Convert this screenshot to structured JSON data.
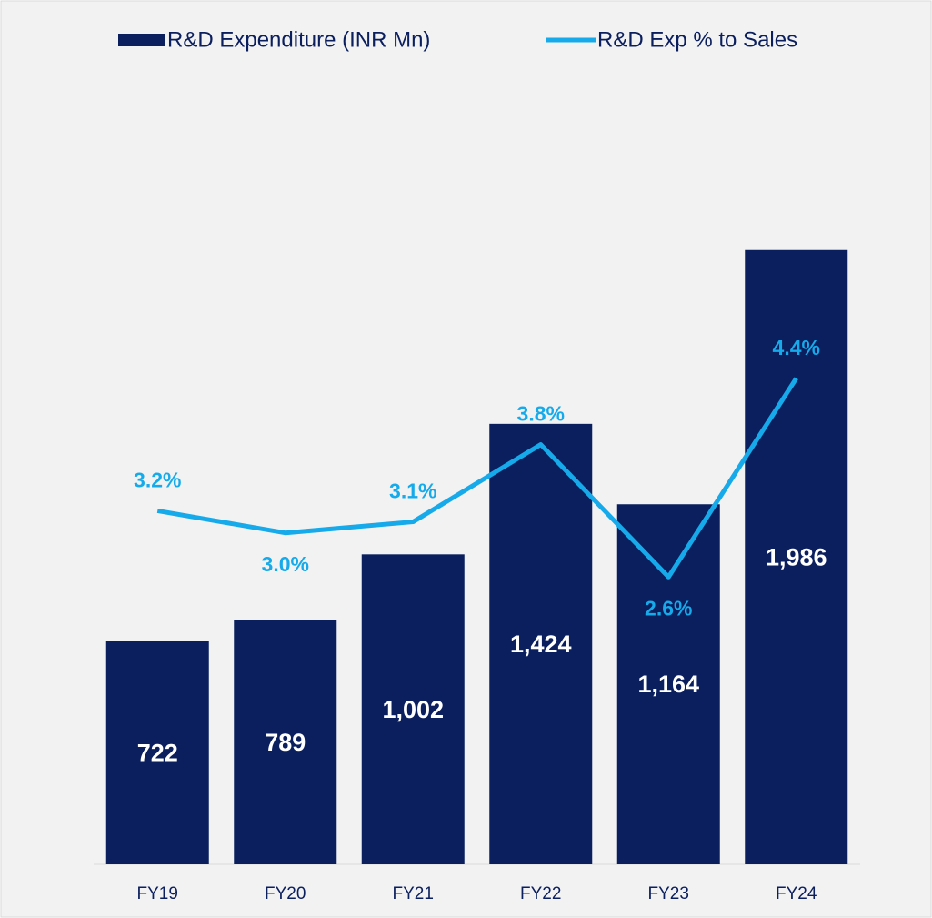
{
  "chart_data": {
    "type": "bar_line",
    "categories": [
      "FY19",
      "FY20",
      "FY21",
      "FY22",
      "FY23",
      "FY24"
    ],
    "series": [
      {
        "name": "R&D Expenditure (INR Mn)",
        "type": "bar",
        "color": "#0b1f5e",
        "values": [
          722,
          789,
          1002,
          1424,
          1164,
          1986
        ],
        "value_labels": [
          "722",
          "789",
          "1,002",
          "1,424",
          "1,164",
          "1,986"
        ]
      },
      {
        "name": "R&D Exp % to Sales",
        "type": "line",
        "axis": "y2",
        "color": "#16aaea",
        "values": [
          3.2,
          3.0,
          3.1,
          3.8,
          2.6,
          4.4
        ],
        "value_labels": [
          "3.2%",
          "3.0%",
          "3.1%",
          "3.8%",
          "2.6%",
          "4.4%"
        ]
      }
    ],
    "ylim": [
      0,
      2500
    ],
    "y2lim": [
      0,
      7
    ],
    "legend": "top"
  }
}
